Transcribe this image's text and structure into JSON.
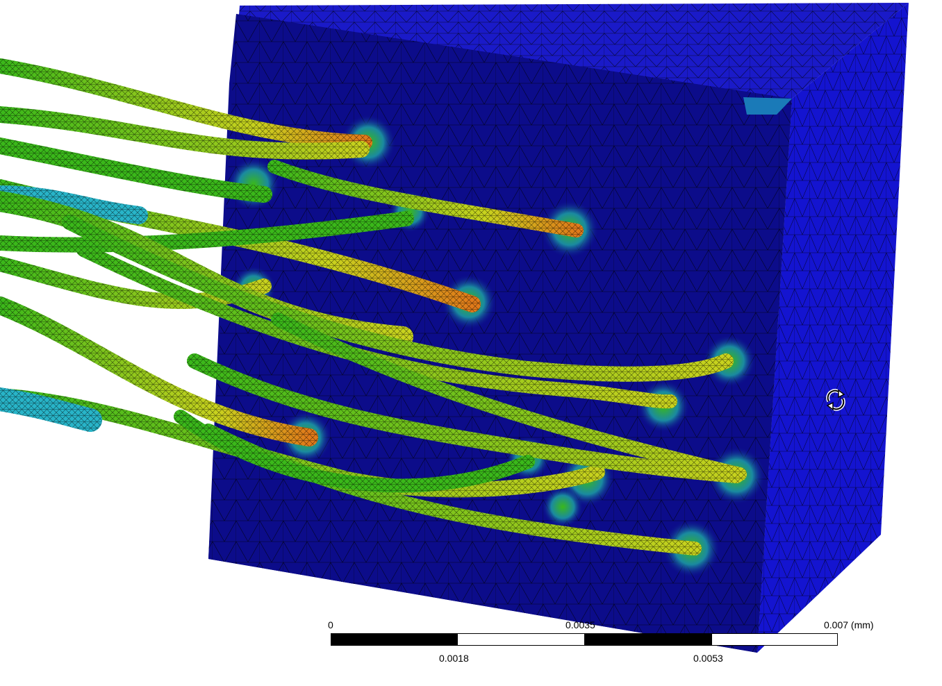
{
  "viewport": {
    "colors": {
      "block_front": "#0c0c8a",
      "block_side": "#1414d0",
      "block_top": "#1a1ac8",
      "mesh_line": "#000000",
      "fiber_green": "#3ab81a",
      "fiber_yellow": "#c8d21e",
      "fiber_orange": "#e07a1a",
      "fiber_cyan": "#28b4c8"
    },
    "cursor_icon": "rotate-icon"
  },
  "scale_bar": {
    "top_labels": [
      "0",
      "0.0035",
      "0.007 (mm)"
    ],
    "bottom_labels": [
      "0.0018",
      "0.0053"
    ]
  }
}
